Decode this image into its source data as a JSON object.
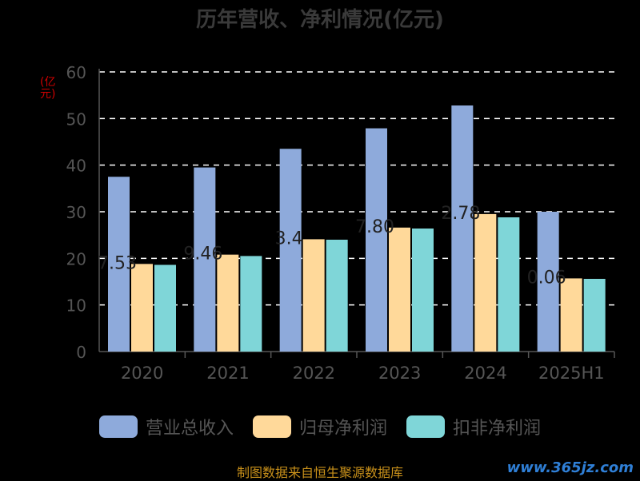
{
  "chart_data": {
    "type": "bar",
    "title": "历年营收、净利情况(亿元)",
    "ylabel": "(亿元)",
    "xlabel": "",
    "categories": [
      "2020",
      "2021",
      "2022",
      "2023",
      "2024",
      "2025H1"
    ],
    "ylim": [
      0,
      60
    ],
    "yticks": [
      0,
      10,
      20,
      30,
      40,
      50,
      60
    ],
    "grid": true,
    "legend_position": "bottom",
    "series": [
      {
        "name": "营业总收入",
        "color": "#8eaadb",
        "values": [
          37.5,
          39.5,
          43.5,
          47.9,
          52.8,
          30.0
        ]
      },
      {
        "name": "归母净利润",
        "color": "#ffd99a",
        "values": [
          18.8,
          20.8,
          24.1,
          26.6,
          29.5,
          15.7
        ]
      },
      {
        "name": "扣非净利润",
        "color": "#7fd6d8",
        "values": [
          18.6,
          20.5,
          24.0,
          26.4,
          28.8,
          15.6
        ]
      }
    ],
    "data_labels": [
      "7.53",
      "9.46",
      "3.4",
      "7.80",
      "2.78",
      "0.06"
    ]
  },
  "source": "制图数据来自恒生聚源数据库",
  "watermark": "www.365jz.com"
}
